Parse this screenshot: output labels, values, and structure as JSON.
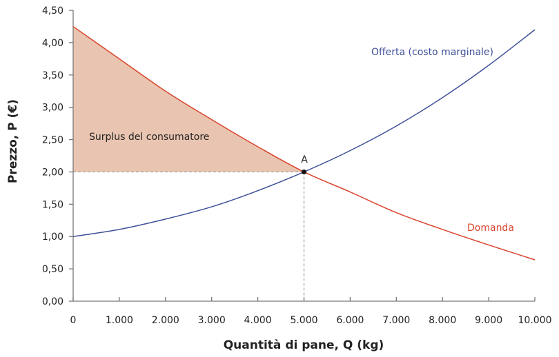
{
  "chart_data": {
    "type": "line",
    "title": "",
    "xlabel": "Quantità di pane, Q (kg)",
    "ylabel": "Prezzo, P (€)",
    "xlim": [
      0,
      10000
    ],
    "ylim": [
      0,
      4.5
    ],
    "grid": false,
    "x_ticks": [
      0,
      1000,
      2000,
      3000,
      4000,
      5000,
      6000,
      7000,
      8000,
      9000,
      10000
    ],
    "x_tick_labels": [
      "0",
      "1.000",
      "2.000",
      "3.000",
      "4.000",
      "5.000",
      "6.000",
      "7.000",
      "8.000",
      "9.000",
      "10.000"
    ],
    "y_ticks": [
      0,
      0.5,
      1,
      1.5,
      2,
      2.5,
      3,
      3.5,
      4,
      4.5
    ],
    "y_tick_labels": [
      "0,00",
      "0,50",
      "1,00",
      "1,50",
      "2,00",
      "2,50",
      "3,00",
      "3,50",
      "4,00",
      "4,50"
    ],
    "series": [
      {
        "name": "Offerta (costo marginale)",
        "color": "#3d4f98",
        "x": [
          0,
          1000,
          2000,
          3000,
          4000,
          5000,
          6000,
          7000,
          8000,
          9000,
          10000
        ],
        "y": [
          1.0,
          1.11,
          1.27,
          1.46,
          1.71,
          2.0,
          2.33,
          2.71,
          3.15,
          3.65,
          4.2
        ]
      },
      {
        "name": "Domanda",
        "color": "#d8432c",
        "x": [
          0,
          1000,
          2000,
          3000,
          4000,
          5000,
          6000,
          7000,
          8000,
          9000,
          10000
        ],
        "y": [
          4.25,
          3.75,
          3.25,
          2.81,
          2.39,
          2.0,
          1.69,
          1.37,
          1.11,
          0.87,
          0.64
        ]
      }
    ],
    "equilibrium": {
      "label": "A",
      "x": 5000,
      "y": 2.0
    },
    "shaded_area": {
      "label": "Surplus del consumatore",
      "color": "#e9c4b0",
      "between": "Domanda and P = 2,00 for Q 0–5.000"
    },
    "annotations": [
      "Surplus del consumatore",
      "A"
    ]
  }
}
